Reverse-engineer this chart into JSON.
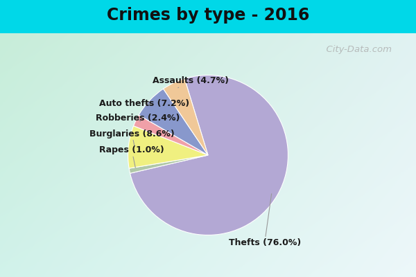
{
  "title": "Crimes by type - 2016",
  "slices": [
    {
      "label": "Thefts (76.0%)",
      "value": 76.0,
      "color": "#b3a8d4"
    },
    {
      "label": "Rapes (1.0%)",
      "value": 1.0,
      "color": "#b0c8a8"
    },
    {
      "label": "Burglaries (8.6%)",
      "value": 8.6,
      "color": "#f0f080"
    },
    {
      "label": "Robberies (2.4%)",
      "value": 2.4,
      "color": "#f0a0a8"
    },
    {
      "label": "Auto thefts (7.2%)",
      "value": 7.2,
      "color": "#8898cc"
    },
    {
      "label": "Assaults (4.7%)",
      "value": 4.7,
      "color": "#f0c898"
    }
  ],
  "title_fontsize": 17,
  "title_fontweight": "bold",
  "cyan_bar_color": "#00d8e8",
  "label_fontsize": 9,
  "watermark": "  City-Data.com",
  "startangle": 107,
  "bg_topleft": [
    0.78,
    0.93,
    0.85
  ],
  "bg_topright": [
    0.88,
    0.95,
    0.95
  ],
  "bg_bottomleft": [
    0.82,
    0.95,
    0.92
  ],
  "bg_bottomright": [
    0.93,
    0.97,
    0.98
  ]
}
